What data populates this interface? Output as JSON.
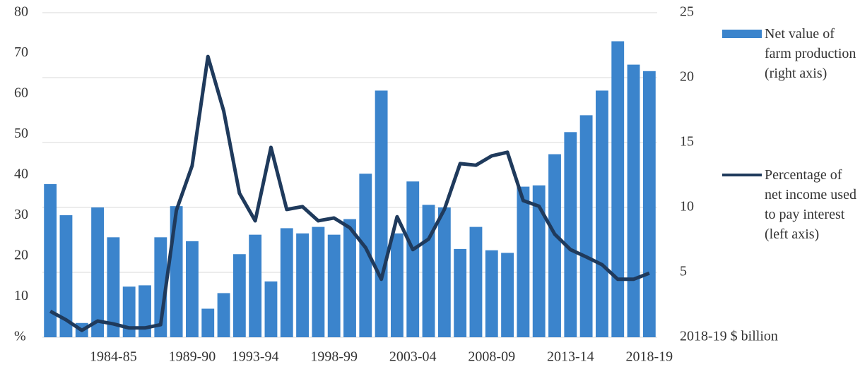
{
  "chart_data": {
    "type": "bar-line",
    "categories": [
      null,
      null,
      null,
      null,
      "1984-85",
      null,
      null,
      null,
      null,
      "1989-90",
      null,
      null,
      null,
      "1993-94",
      null,
      null,
      null,
      null,
      "1998-99",
      null,
      null,
      null,
      null,
      "2003-04",
      null,
      null,
      null,
      null,
      "2008-09",
      null,
      null,
      null,
      null,
      "2013-14",
      null,
      null,
      null,
      null,
      "2018-19"
    ],
    "series": [
      {
        "name": "Net value of farm production (right axis)",
        "type": "bar",
        "axis": "y2",
        "color": "#3b84cc",
        "values": [
          11.8,
          9.4,
          1.1,
          10.0,
          7.7,
          3.9,
          4.0,
          7.7,
          10.1,
          7.4,
          2.2,
          3.4,
          6.4,
          7.9,
          4.3,
          8.4,
          8.0,
          8.5,
          7.9,
          9.1,
          12.6,
          19.0,
          8.0,
          12.0,
          10.2,
          10.0,
          6.8,
          8.5,
          6.7,
          6.5,
          11.6,
          11.7,
          14.1,
          15.8,
          17.1,
          19.0,
          22.8,
          21.0,
          20.5
        ]
      },
      {
        "name": "Percentage of net income used to pay interest (left axis)",
        "type": "line",
        "axis": "y",
        "color": "#1f3a5c",
        "values": [
          6.4,
          4.3,
          1.7,
          4.0,
          3.3,
          2.3,
          2.3,
          3.1,
          31.3,
          42.3,
          69.2,
          55.8,
          35.5,
          28.7,
          46.8,
          31.5,
          32.2,
          28.7,
          29.4,
          27.0,
          22.1,
          14.3,
          29.7,
          21.6,
          24.2,
          31.5,
          42.8,
          42.4,
          44.7,
          45.6,
          33.7,
          32.3,
          25.4,
          21.6,
          19.8,
          17.9,
          14.3,
          14.3,
          15.8
        ]
      }
    ],
    "ylim": [
      0,
      80
    ],
    "yticks": [
      {
        "value": 0,
        "label": "%"
      },
      10,
      20,
      30,
      40,
      50,
      60,
      70,
      80
    ],
    "y2lim": [
      0,
      25
    ],
    "y2ticks": [
      {
        "value": 0,
        "label": "2018-19 $ billion"
      },
      5,
      10,
      15,
      20,
      25
    ],
    "grid": true,
    "legend": "right"
  }
}
